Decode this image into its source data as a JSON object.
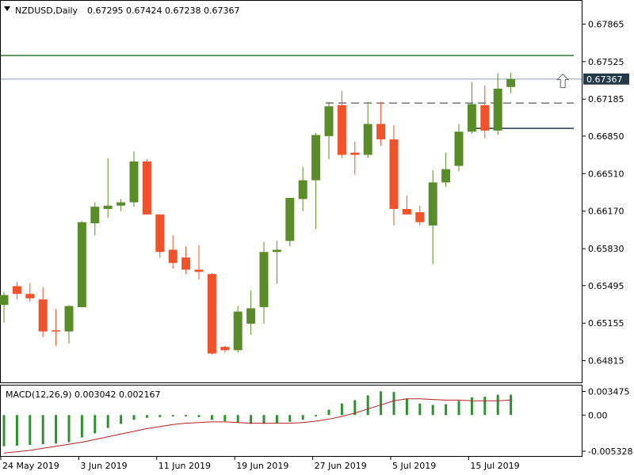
{
  "header": {
    "symbol_label": "NZDUSD,Daily",
    "ohlc_values": "0.67295 0.67424 0.67238 0.67367",
    "macd_label": "MACD(12,26,9) 0.003042 0.002167"
  },
  "colors": {
    "bull": "#5b8c2a",
    "bear": "#f0522c",
    "macd_hist": "#2e9130",
    "signal_line": "#b22222",
    "resistance": "#2e7d32",
    "support": "#1f3a4a",
    "price_line": "#8aa2b2",
    "dashed": "#333333",
    "price_tag_bg": "#243a48"
  },
  "chart_data": {
    "type": "candlestick",
    "price_axis": {
      "ylim": [
        0.6464,
        0.6804
      ],
      "tick_labels": [
        "0.67865",
        "0.67525",
        "0.67185",
        "0.66850",
        "0.66510",
        "0.66170",
        "0.65830",
        "0.65495",
        "0.65155",
        "0.64815"
      ],
      "tick_values": [
        0.67865,
        0.67525,
        0.67185,
        0.6685,
        0.6651,
        0.6617,
        0.6583,
        0.65495,
        0.65155,
        0.64815
      ],
      "current_price_label": "0.67367",
      "current_price": 0.67367
    },
    "x_axis": {
      "date_labels": [
        {
          "text": "24 May 2019",
          "bar": 0
        },
        {
          "text": "3 Jun 2019",
          "bar": 6
        },
        {
          "text": "11 Jun 2019",
          "bar": 12
        },
        {
          "text": "19 Jun 2019",
          "bar": 18
        },
        {
          "text": "27 Jun 2019",
          "bar": 24
        },
        {
          "text": "5 Jul 2019",
          "bar": 30
        },
        {
          "text": "15 Jul 2019",
          "bar": 36
        }
      ]
    },
    "candles": [
      {
        "o": 0.6532,
        "h": 0.6544,
        "l": 0.6516,
        "c": 0.6541
      },
      {
        "o": 0.6549,
        "h": 0.6553,
        "l": 0.6537,
        "c": 0.6542
      },
      {
        "o": 0.6542,
        "h": 0.6552,
        "l": 0.6535,
        "c": 0.6538
      },
      {
        "o": 0.6537,
        "h": 0.6548,
        "l": 0.6503,
        "c": 0.6508
      },
      {
        "o": 0.6509,
        "h": 0.6528,
        "l": 0.6495,
        "c": 0.6508
      },
      {
        "o": 0.6508,
        "h": 0.6532,
        "l": 0.6497,
        "c": 0.6531
      },
      {
        "o": 0.653,
        "h": 0.6608,
        "l": 0.653,
        "c": 0.6607
      },
      {
        "o": 0.6606,
        "h": 0.6625,
        "l": 0.6595,
        "c": 0.6621
      },
      {
        "o": 0.6619,
        "h": 0.6665,
        "l": 0.6611,
        "c": 0.6622
      },
      {
        "o": 0.6622,
        "h": 0.6628,
        "l": 0.6617,
        "c": 0.6625
      },
      {
        "o": 0.6625,
        "h": 0.6671,
        "l": 0.6621,
        "c": 0.6662
      },
      {
        "o": 0.6662,
        "h": 0.6664,
        "l": 0.6614,
        "c": 0.6614
      },
      {
        "o": 0.6614,
        "h": 0.6614,
        "l": 0.6575,
        "c": 0.658
      },
      {
        "o": 0.6582,
        "h": 0.6595,
        "l": 0.6565,
        "c": 0.657
      },
      {
        "o": 0.6575,
        "h": 0.6585,
        "l": 0.656,
        "c": 0.6564
      },
      {
        "o": 0.6564,
        "h": 0.6586,
        "l": 0.6555,
        "c": 0.6562
      },
      {
        "o": 0.656,
        "h": 0.6561,
        "l": 0.6487,
        "c": 0.6488
      },
      {
        "o": 0.6494,
        "h": 0.6495,
        "l": 0.6489,
        "c": 0.6491
      },
      {
        "o": 0.6491,
        "h": 0.6531,
        "l": 0.6489,
        "c": 0.6526
      },
      {
        "o": 0.6515,
        "h": 0.6545,
        "l": 0.6505,
        "c": 0.6529
      },
      {
        "o": 0.653,
        "h": 0.6589,
        "l": 0.6515,
        "c": 0.658
      },
      {
        "o": 0.658,
        "h": 0.659,
        "l": 0.6551,
        "c": 0.6582
      },
      {
        "o": 0.659,
        "h": 0.6628,
        "l": 0.6585,
        "c": 0.6629
      },
      {
        "o": 0.6628,
        "h": 0.6657,
        "l": 0.6617,
        "c": 0.6645
      },
      {
        "o": 0.6645,
        "h": 0.6688,
        "l": 0.6601,
        "c": 0.6686
      },
      {
        "o": 0.6685,
        "h": 0.6716,
        "l": 0.6664,
        "c": 0.6712
      },
      {
        "o": 0.6713,
        "h": 0.6726,
        "l": 0.6665,
        "c": 0.6668
      },
      {
        "o": 0.667,
        "h": 0.668,
        "l": 0.665,
        "c": 0.6668
      },
      {
        "o": 0.6668,
        "h": 0.6716,
        "l": 0.6665,
        "c": 0.6696
      },
      {
        "o": 0.6696,
        "h": 0.6716,
        "l": 0.6676,
        "c": 0.6682
      },
      {
        "o": 0.6682,
        "h": 0.6695,
        "l": 0.6604,
        "c": 0.6619
      },
      {
        "o": 0.6619,
        "h": 0.6631,
        "l": 0.6614,
        "c": 0.6614
      },
      {
        "o": 0.6616,
        "h": 0.6622,
        "l": 0.6604,
        "c": 0.6607
      },
      {
        "o": 0.6604,
        "h": 0.6654,
        "l": 0.6569,
        "c": 0.6643
      },
      {
        "o": 0.6643,
        "h": 0.667,
        "l": 0.6639,
        "c": 0.6655
      },
      {
        "o": 0.6658,
        "h": 0.6696,
        "l": 0.6653,
        "c": 0.6689
      },
      {
        "o": 0.6689,
        "h": 0.6734,
        "l": 0.6687,
        "c": 0.6714
      },
      {
        "o": 0.6713,
        "h": 0.6731,
        "l": 0.6683,
        "c": 0.669
      },
      {
        "o": 0.669,
        "h": 0.6742,
        "l": 0.6686,
        "c": 0.6728
      },
      {
        "o": 0.67295,
        "h": 0.67424,
        "l": 0.67238,
        "c": 0.67367
      }
    ],
    "levels": {
      "resistance": 0.6758,
      "dashed": 0.6715,
      "dashed_from_bar": 25,
      "support": 0.6692,
      "support_from_bar": 36
    },
    "arrow": {
      "type": "up",
      "bar": 43,
      "price": 0.6734
    },
    "macd": {
      "ylim": [
        -0.0058,
        0.004
      ],
      "tick_labels": [
        "0.003475",
        "0.00",
        "-0.005328"
      ],
      "tick_values": [
        0.003475,
        0.0,
        -0.005328
      ],
      "histogram": [
        -0.0046,
        -0.0045,
        -0.0044,
        -0.0043,
        -0.0042,
        -0.004,
        -0.0033,
        -0.0027,
        -0.0019,
        -0.0013,
        -0.0007,
        -0.0004,
        -0.0003,
        -0.0002,
        -0.0002,
        -0.0003,
        -0.0007,
        -0.0009,
        -0.0011,
        -0.0013,
        -0.0013,
        -0.0012,
        -0.001,
        -0.0007,
        -0.0002,
        0.0008,
        0.0017,
        0.0022,
        0.0029,
        0.0035,
        0.0034,
        0.0024,
        0.0017,
        0.0015,
        0.0016,
        0.0021,
        0.0026,
        0.0027,
        0.003,
        0.003
      ],
      "signal": [
        -0.0056,
        -0.0054,
        -0.0052,
        -0.0049,
        -0.0046,
        -0.0043,
        -0.004,
        -0.0036,
        -0.0032,
        -0.0028,
        -0.0024,
        -0.002,
        -0.0017,
        -0.0014,
        -0.0012,
        -0.0011,
        -0.001,
        -0.001,
        -0.0011,
        -0.0012,
        -0.0012,
        -0.0012,
        -0.0012,
        -0.0011,
        -0.0009,
        -0.0006,
        -0.0002,
        0.0003,
        0.0009,
        0.0015,
        0.0021,
        0.0024,
        0.0024,
        0.0023,
        0.0022,
        0.0022,
        0.0021,
        0.0021,
        0.0021,
        0.0022
      ]
    }
  }
}
